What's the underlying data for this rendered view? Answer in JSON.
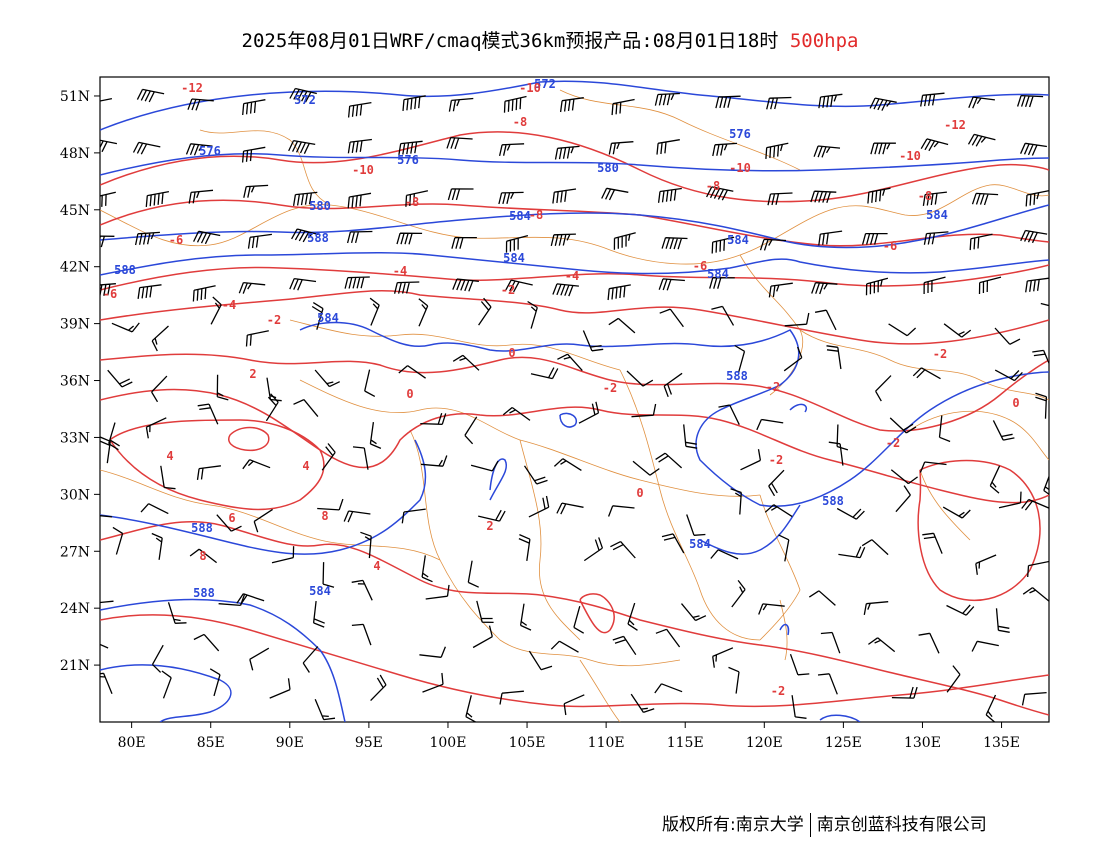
{
  "title": {
    "text": "2025年08月01日WRF/cmaq模式36km预报产品:08月01日18时",
    "level": "500hpa",
    "level_color": "#e22b2b"
  },
  "axes": {
    "lon_labels": [
      "80E",
      "85E",
      "90E",
      "95E",
      "100E",
      "105E",
      "110E",
      "115E",
      "120E",
      "125E",
      "130E",
      "135E"
    ],
    "lat_labels": [
      "51N",
      "48N",
      "45N",
      "42N",
      "39N",
      "36N",
      "33N",
      "30N",
      "27N",
      "24N",
      "21N"
    ],
    "lon_range": [
      78,
      138
    ],
    "lat_range": [
      18,
      52
    ]
  },
  "colors": {
    "height_contour": "#2b48d9",
    "temp_contour": "#e03c3c",
    "border": "#e09040",
    "wind_barb": "#000000",
    "frame": "#000000"
  },
  "contour_labels": {
    "height": [
      "572",
      "572",
      "576",
      "576",
      "576",
      "580",
      "580",
      "584",
      "584",
      "584",
      "588",
      "588",
      "584",
      "584",
      "584",
      "588",
      "588",
      "588",
      "588",
      "584",
      "584"
    ],
    "temp": [
      "-12",
      "-10",
      "-8",
      "-10",
      "-10",
      "-8",
      "-8",
      "-8",
      "-6",
      "-6",
      "-6",
      "-6",
      "-4",
      "-4",
      "-4",
      "-2",
      "-2",
      "-2",
      "0",
      "0",
      "-2",
      "-2",
      "-2",
      "-2",
      "0",
      "2",
      "4",
      "4",
      "6",
      "8",
      "8",
      "4",
      "2",
      "0",
      "-2",
      "-12",
      "-10",
      "-8"
    ]
  },
  "footer": {
    "left": "版权所有:南京大学",
    "right": "南京创蓝科技有限公司"
  }
}
